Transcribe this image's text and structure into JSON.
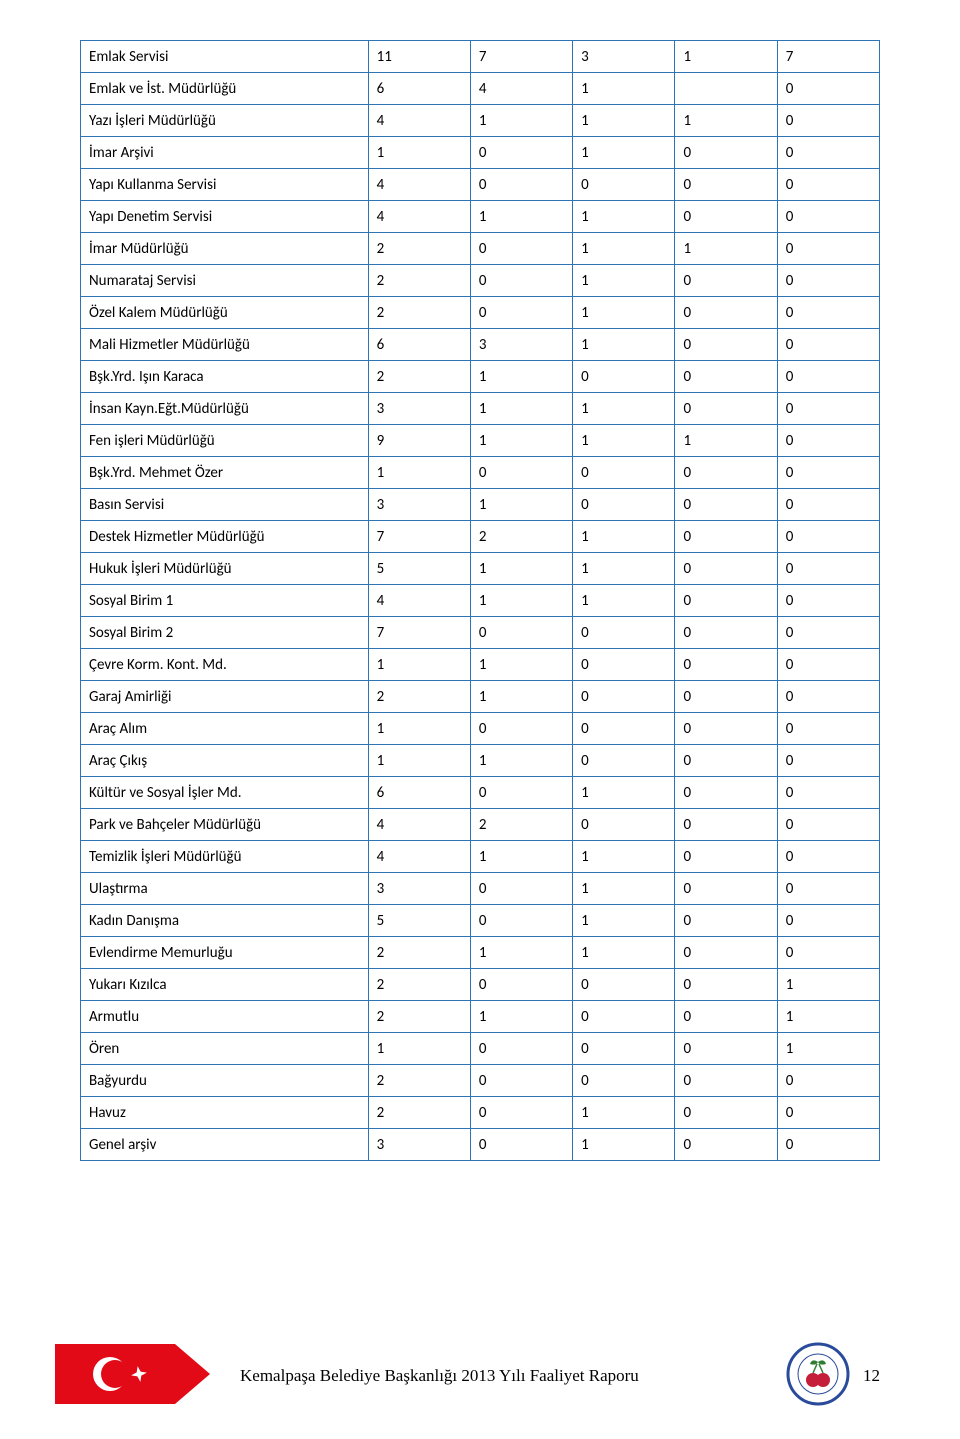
{
  "table": {
    "border_color": "#2e74b5",
    "text_color": "#000000",
    "font_size": 15,
    "label_col_width_pct": 36,
    "num_col_width_pct": 12.8,
    "rows": [
      {
        "label": "Emlak Servisi",
        "c1": "11",
        "c2": "7",
        "c3": "3",
        "c4": "1",
        "c5": "7"
      },
      {
        "label": "Emlak ve İst. Müdürlüğü",
        "c1": "6",
        "c2": "4",
        "c3": "1",
        "c4": "",
        "c5": "0"
      },
      {
        "label": "Yazı İşleri Müdürlüğü",
        "c1": "4",
        "c2": "1",
        "c3": "1",
        "c4": "1",
        "c5": "0"
      },
      {
        "label": "İmar Arşivi",
        "c1": "1",
        "c2": "0",
        "c3": "1",
        "c4": "0",
        "c5": "0"
      },
      {
        "label": "Yapı Kullanma Servisi",
        "c1": "4",
        "c2": "0",
        "c3": "0",
        "c4": "0",
        "c5": "0"
      },
      {
        "label": "Yapı Denetim Servisi",
        "c1": "4",
        "c2": "1",
        "c3": "1",
        "c4": "0",
        "c5": "0"
      },
      {
        "label": "İmar Müdürlüğü",
        "c1": "2",
        "c2": "0",
        "c3": "1",
        "c4": "1",
        "c5": "0"
      },
      {
        "label": "Numarataj Servisi",
        "c1": "2",
        "c2": "0",
        "c3": "1",
        "c4": "0",
        "c5": "0"
      },
      {
        "label": "Özel Kalem Müdürlüğü",
        "c1": "2",
        "c2": "0",
        "c3": "1",
        "c4": "0",
        "c5": "0"
      },
      {
        "label": "Mali Hizmetler Müdürlüğü",
        "c1": "6",
        "c2": "3",
        "c3": "1",
        "c4": "0",
        "c5": "0"
      },
      {
        "label": "Bşk.Yrd. Işın Karaca",
        "c1": "2",
        "c2": "1",
        "c3": "0",
        "c4": "0",
        "c5": "0"
      },
      {
        "label": "İnsan Kayn.Eğt.Müdürlüğü",
        "c1": "3",
        "c2": "1",
        "c3": "1",
        "c4": "0",
        "c5": "0"
      },
      {
        "label": "Fen işleri Müdürlüğü",
        "c1": "9",
        "c2": "1",
        "c3": "1",
        "c4": "1",
        "c5": "0"
      },
      {
        "label": "Bşk.Yrd. Mehmet Özer",
        "c1": "1",
        "c2": "0",
        "c3": "0",
        "c4": "0",
        "c5": "0"
      },
      {
        "label": "Basın Servisi",
        "c1": "3",
        "c2": "1",
        "c3": "0",
        "c4": "0",
        "c5": "0"
      },
      {
        "label": "Destek Hizmetler Müdürlüğü",
        "c1": "7",
        "c2": "2",
        "c3": "1",
        "c4": "0",
        "c5": "0"
      },
      {
        "label": "Hukuk İşleri Müdürlüğü",
        "c1": "5",
        "c2": "1",
        "c3": "1",
        "c4": "0",
        "c5": "0"
      },
      {
        "label": "Sosyal Birim 1",
        "c1": "4",
        "c2": "1",
        "c3": "1",
        "c4": "0",
        "c5": "0"
      },
      {
        "label": "Sosyal Birim 2",
        "c1": "7",
        "c2": "0",
        "c3": "0",
        "c4": "0",
        "c5": "0"
      },
      {
        "label": "Çevre Korm. Kont. Md.",
        "c1": "1",
        "c2": "1",
        "c3": "0",
        "c4": "0",
        "c5": "0"
      },
      {
        "label": "Garaj Amirliği",
        "c1": "2",
        "c2": "1",
        "c3": "0",
        "c4": "0",
        "c5": "0"
      },
      {
        "label": "Araç Alım",
        "c1": "1",
        "c2": "0",
        "c3": "0",
        "c4": "0",
        "c5": "0"
      },
      {
        "label": "Araç Çıkış",
        "c1": "1",
        "c2": "1",
        "c3": "0",
        "c4": "0",
        "c5": "0"
      },
      {
        "label": "Kültür ve Sosyal İşler Md.",
        "c1": "6",
        "c2": "0",
        "c3": "1",
        "c4": "0",
        "c5": "0"
      },
      {
        "label": "Park ve Bahçeler Müdürlüğü",
        "c1": "4",
        "c2": "2",
        "c3": "0",
        "c4": "0",
        "c5": "0"
      },
      {
        "label": "Temizlik İşleri Müdürlüğü",
        "c1": "4",
        "c2": "1",
        "c3": "1",
        "c4": "0",
        "c5": "0"
      },
      {
        "label": "Ulaştırma",
        "c1": "3",
        "c2": "0",
        "c3": "1",
        "c4": "0",
        "c5": "0"
      },
      {
        "label": "Kadın Danışma",
        "c1": "5",
        "c2": "0",
        "c3": "1",
        "c4": "0",
        "c5": "0"
      },
      {
        "label": "Evlendirme Memurluğu",
        "c1": "2",
        "c2": "1",
        "c3": "1",
        "c4": "0",
        "c5": "0"
      },
      {
        "label": "Yukarı Kızılca",
        "c1": "2",
        "c2": "0",
        "c3": "0",
        "c4": "0",
        "c5": "1"
      },
      {
        "label": "Armutlu",
        "c1": "2",
        "c2": "1",
        "c3": "0",
        "c4": "0",
        "c5": "1"
      },
      {
        "label": "Ören",
        "c1": "1",
        "c2": "0",
        "c3": "0",
        "c4": "0",
        "c5": "1"
      },
      {
        "label": "Bağyurdu",
        "c1": "2",
        "c2": "0",
        "c3": "0",
        "c4": "0",
        "c5": "0"
      },
      {
        "label": "Havuz",
        "c1": "2",
        "c2": "0",
        "c3": "1",
        "c4": "0",
        "c5": "0"
      },
      {
        "label": "Genel arşiv",
        "c1": "3",
        "c2": "0",
        "c3": "1",
        "c4": "0",
        "c5": "0"
      }
    ]
  },
  "footer": {
    "text": "Kemalpaşa Belediye Başkanlığı 2013 Yılı Faaliyet Raporu",
    "page_number": "12",
    "flag": {
      "red": "#e30a17",
      "white": "#ffffff"
    },
    "seal": {
      "outer_ring": "#2a4b9b",
      "cherry_red": "#c41e3a",
      "leaf_green": "#2e7d32",
      "bg": "#ffffff"
    }
  }
}
